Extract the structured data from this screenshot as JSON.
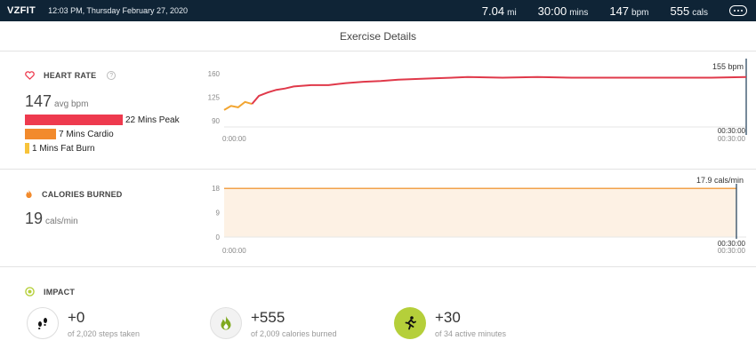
{
  "topbar": {
    "brand": "VZFIT",
    "datetime": "12:03 PM, Thursday February 27, 2020",
    "stats": [
      {
        "value": "7.04",
        "unit": "mi"
      },
      {
        "value": "30:00",
        "unit": "mins"
      },
      {
        "value": "147",
        "unit": "bpm"
      },
      {
        "value": "555",
        "unit": "cals"
      }
    ],
    "menu_icon": "ellipsis-icon"
  },
  "page_title": "Exercise Details",
  "heart_rate": {
    "title": "HEART RATE",
    "icon": "heart-icon",
    "info_icon": "info-icon",
    "avg_value": "147",
    "avg_unit": "avg bpm",
    "zones": [
      {
        "label": "22 Mins Peak",
        "minutes": 22,
        "color": "#ee3a4e"
      },
      {
        "label": "7 Mins Cardio",
        "minutes": 7,
        "color": "#f28a2c"
      },
      {
        "label": "1 Mins Fat Burn",
        "minutes": 1,
        "color": "#f7c33a"
      }
    ]
  },
  "calories": {
    "title": "CALORIES BURNED",
    "icon": "flame-icon",
    "value": "19",
    "unit": "cals/min"
  },
  "impact": {
    "title": "IMPACT",
    "icon": "target-icon",
    "items": [
      {
        "icon": "footsteps-icon",
        "value": "+0",
        "sub": "of 2,020 steps taken",
        "circle_bg": "#ffffff",
        "circle_border": "#dddddd"
      },
      {
        "icon": "flame-icon",
        "value": "+555",
        "sub": "of 2,009 calories burned",
        "circle_bg": "#f2f2f2",
        "circle_border": "#e0e0e0"
      },
      {
        "icon": "running-person-icon",
        "value": "+30",
        "sub": "of 34 active minutes",
        "circle_bg": "#b5cf3a",
        "circle_border": "#b5cf3a"
      }
    ]
  },
  "chart_data": [
    {
      "type": "line",
      "title": "",
      "ylim": [
        90,
        160
      ],
      "yticks": [
        "90",
        "125",
        "160"
      ],
      "x_start_label": "0:00:00",
      "x_end_label": "00:30:00",
      "current_label": "155 bpm",
      "line_color": "#e0394a",
      "early_color": "#f2a531",
      "x_minutes": [
        0,
        0.4,
        0.8,
        1.2,
        1.6,
        2.0,
        2.5,
        3.0,
        3.5,
        4.0,
        5.0,
        6.0,
        7.0,
        8.0,
        9.0,
        10.0,
        12.0,
        14.0,
        16.0,
        18.0,
        20.0,
        22.0,
        24.0,
        26.0,
        28.0,
        30.0
      ],
      "y_bpm": [
        106,
        112,
        110,
        118,
        115,
        127,
        132,
        136,
        138,
        141,
        143,
        143,
        146,
        148,
        149,
        151,
        153,
        155,
        154,
        155,
        154,
        154,
        154,
        154,
        154,
        155
      ]
    },
    {
      "type": "area",
      "title": "",
      "ylim": [
        0,
        18
      ],
      "yticks": [
        "0",
        "9",
        "18"
      ],
      "x_start_label": "0:00:00",
      "x_end_label": "00:30:00",
      "current_label": "17.9 cals/min",
      "line_color": "#f2a24a",
      "fill_color": "#fdf1e4",
      "x_minutes": [
        0,
        30
      ],
      "y_cals": [
        17.9,
        17.9
      ]
    }
  ]
}
